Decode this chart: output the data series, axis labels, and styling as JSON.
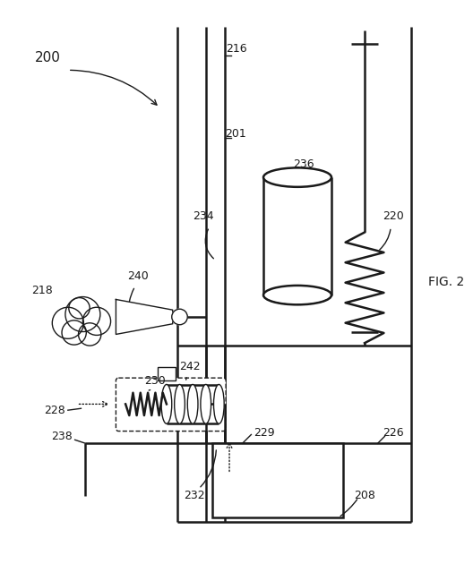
{
  "bg_color": "#ffffff",
  "line_color": "#1a1a1a",
  "lw_main": 1.8,
  "lw_thin": 1.0,
  "fig_width": 5.28,
  "fig_height": 6.3,
  "dpi": 100
}
